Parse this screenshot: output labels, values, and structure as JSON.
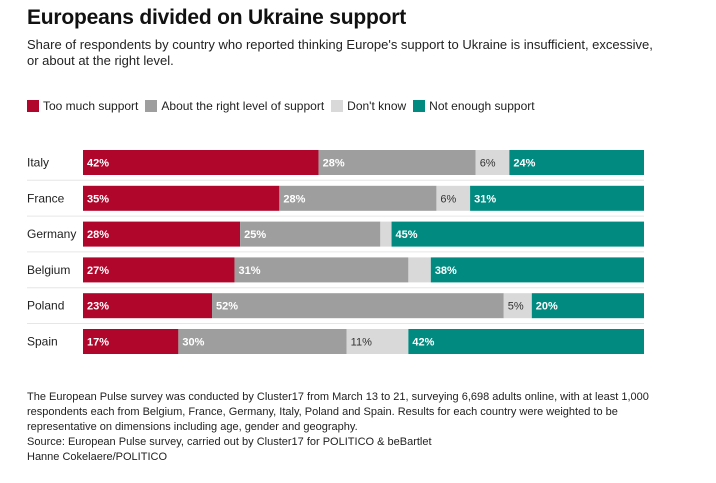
{
  "title": "Europeans divided on Ukraine support",
  "subtitle": "Share of respondents by country who reported thinking Europe's support to Ukraine is insufficient, excessive, or about at the right level.",
  "legend": [
    {
      "label": "Too much support",
      "color": "#b0062b"
    },
    {
      "label": "About the right level of support",
      "color": "#9e9e9e"
    },
    {
      "label": "Don't know",
      "color": "#d9d9d9"
    },
    {
      "label": "Not enough support",
      "color": "#008a80"
    }
  ],
  "chart_data": {
    "type": "bar",
    "orientation": "horizontal",
    "stacked": true,
    "categories": [
      "Italy",
      "France",
      "Germany",
      "Belgium",
      "Poland",
      "Spain"
    ],
    "series": [
      {
        "name": "Too much support",
        "color": "#b0062b",
        "values": [
          42,
          35,
          28,
          27,
          23,
          17
        ],
        "labels": [
          "42%",
          "35%",
          "28%",
          "27%",
          "23%",
          "17%"
        ]
      },
      {
        "name": "About the right level of support",
        "color": "#9e9e9e",
        "values": [
          28,
          28,
          25,
          31,
          52,
          30
        ],
        "labels": [
          "28%",
          "28%",
          "25%",
          "31%",
          "52%",
          "30%"
        ]
      },
      {
        "name": "Don't know",
        "color": "#d9d9d9",
        "values": [
          6,
          6,
          2,
          4,
          5,
          11
        ],
        "labels": [
          "6%",
          "6%",
          "",
          "",
          "5%",
          "11%"
        ]
      },
      {
        "name": "Not enough support",
        "color": "#008a80",
        "values": [
          24,
          31,
          45,
          38,
          20,
          42
        ],
        "labels": [
          "24%",
          "31%",
          "45%",
          "38%",
          "20%",
          "42%"
        ]
      }
    ],
    "xlim": [
      0,
      100
    ],
    "title": "Europeans divided on Ukraine support"
  },
  "footnote": {
    "lines": [
      "The European Pulse survey was conducted by Cluster17 from March 13 to 21, surveying 6,698 adults online, with at least 1,000 respondents each from Belgium, France, Germany, Italy, Poland and Spain. Results for each country were weighted to be representative on dimensions including age, gender and geography.",
      "Source: European Pulse survey, carried out by Cluster17 for POLITICO & beBartlet",
      "Hanne Cokelaere/POLITICO"
    ]
  }
}
